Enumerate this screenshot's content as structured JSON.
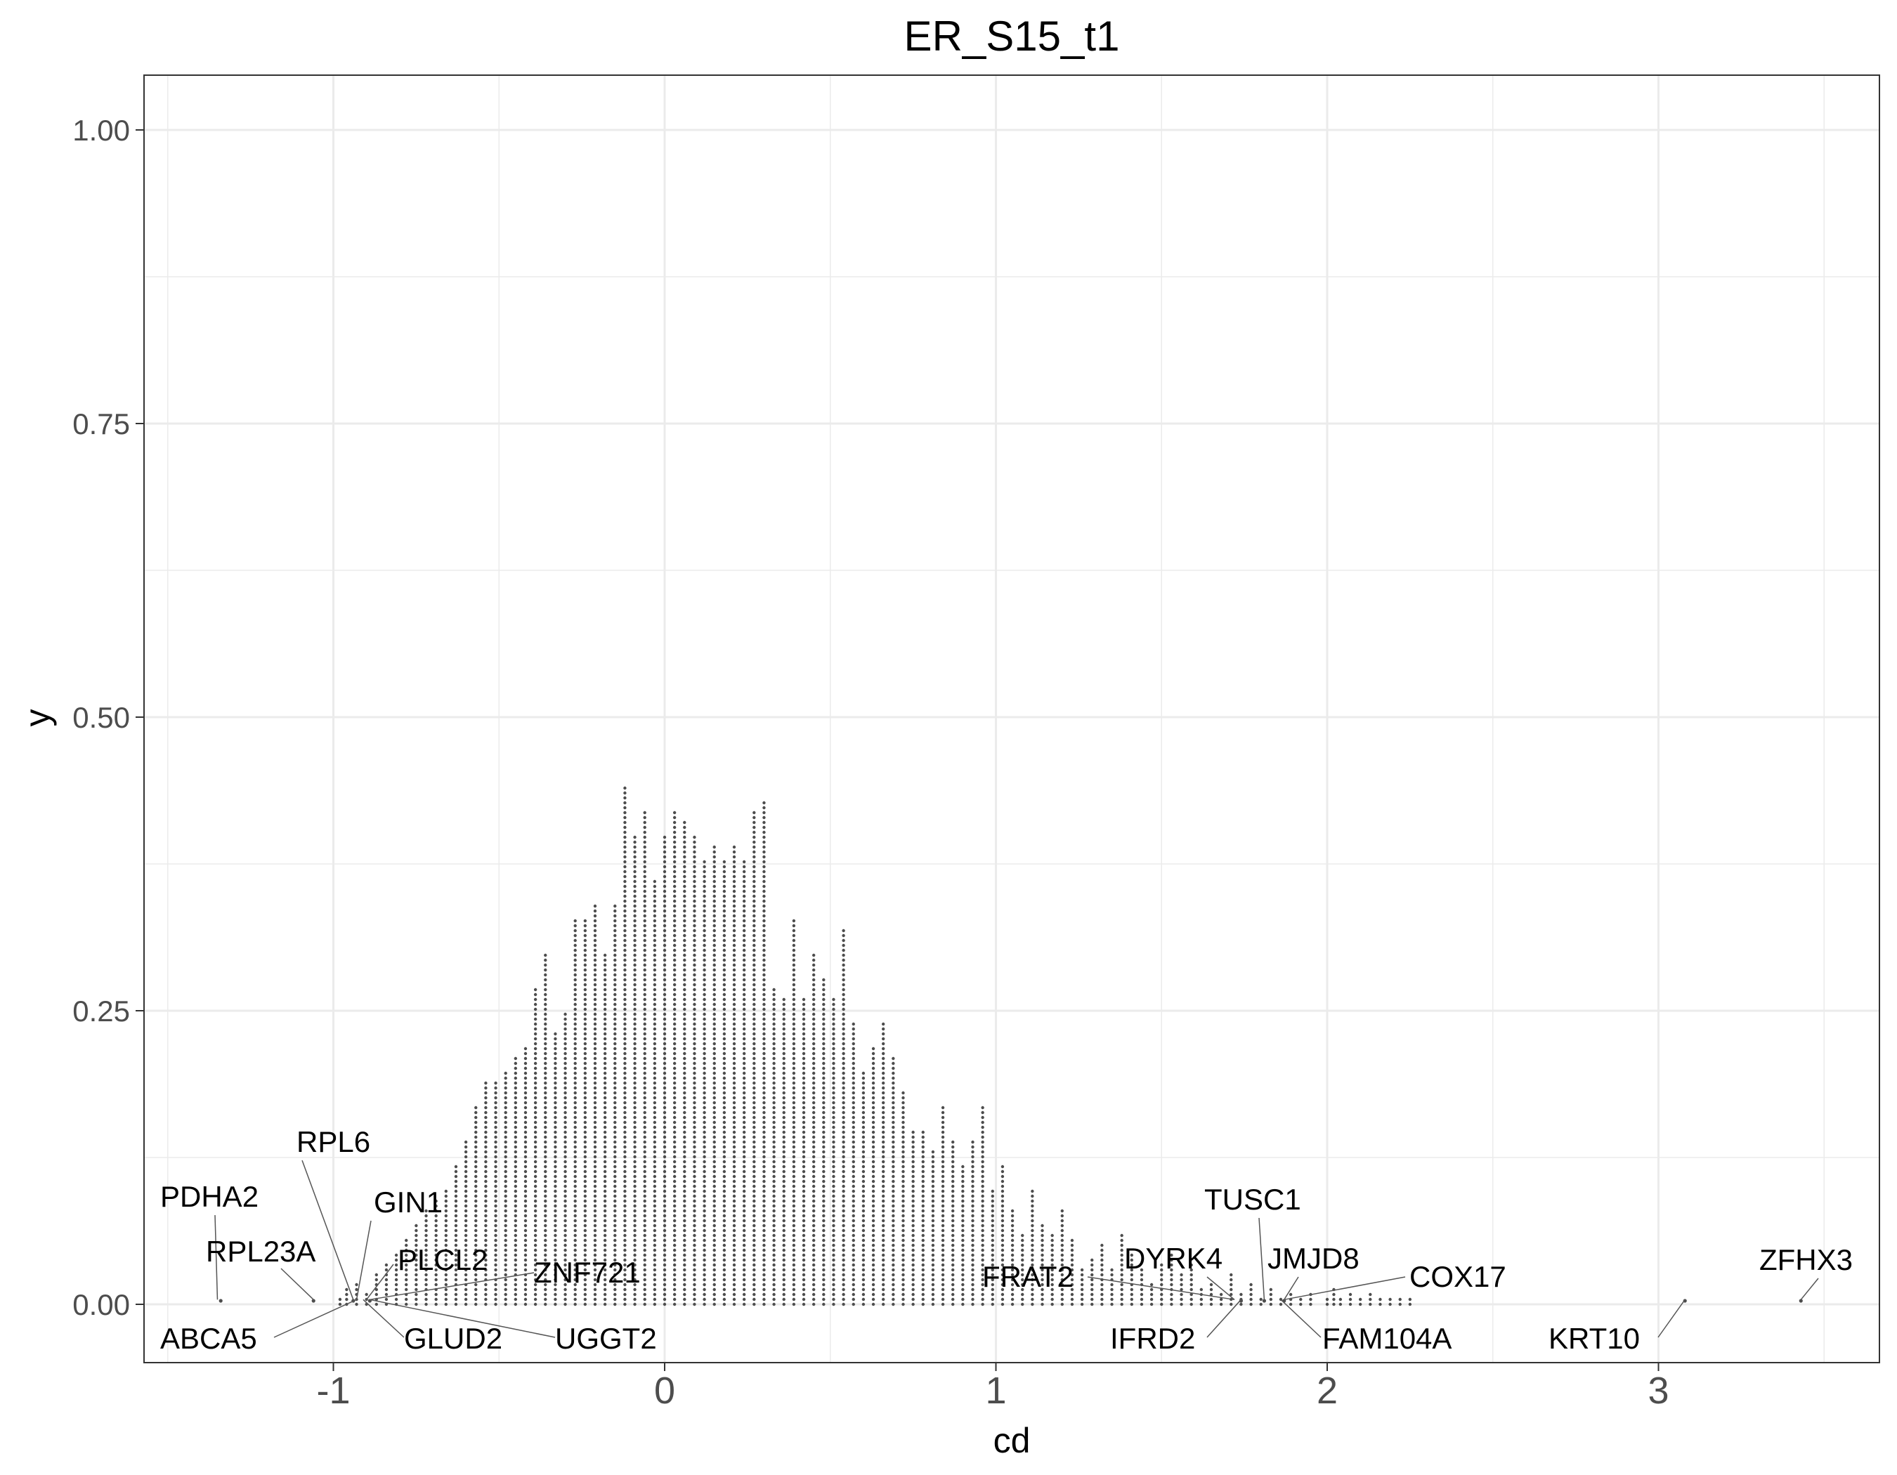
{
  "chart_data": {
    "type": "dotplot",
    "title": "ER_S15_t1",
    "xlabel": "cd",
    "ylabel": "y",
    "xlim": [
      -1.5,
      3.5
    ],
    "ylim": [
      -0.02,
      1.05
    ],
    "x_ticks": [
      -1,
      0,
      1,
      2,
      3
    ],
    "x_tick_labels": [
      "-1",
      "0",
      "1",
      "2",
      "3"
    ],
    "y_ticks": [
      0,
      0.25,
      0.5,
      0.75,
      1
    ],
    "y_tick_labels": [
      "0.00",
      "0.25",
      "0.50",
      "0.75",
      "1.00"
    ],
    "grid": true,
    "legend": "none",
    "dot_color": "#4d4d4d",
    "stacks": [
      {
        "x": -0.98,
        "y": 0.005
      },
      {
        "x": -0.96,
        "y": 0.015
      },
      {
        "x": -0.93,
        "y": 0.02
      },
      {
        "x": -0.9,
        "y": 0.01
      },
      {
        "x": -0.87,
        "y": 0.025
      },
      {
        "x": -0.84,
        "y": 0.035
      },
      {
        "x": -0.81,
        "y": 0.045
      },
      {
        "x": -0.78,
        "y": 0.055
      },
      {
        "x": -0.75,
        "y": 0.07
      },
      {
        "x": -0.72,
        "y": 0.08
      },
      {
        "x": -0.69,
        "y": 0.09
      },
      {
        "x": -0.66,
        "y": 0.1
      },
      {
        "x": -0.63,
        "y": 0.12
      },
      {
        "x": -0.6,
        "y": 0.14
      },
      {
        "x": -0.57,
        "y": 0.17
      },
      {
        "x": -0.54,
        "y": 0.19
      },
      {
        "x": -0.51,
        "y": 0.19
      },
      {
        "x": -0.48,
        "y": 0.2
      },
      {
        "x": -0.45,
        "y": 0.21
      },
      {
        "x": -0.42,
        "y": 0.22
      },
      {
        "x": -0.39,
        "y": 0.27
      },
      {
        "x": -0.36,
        "y": 0.3
      },
      {
        "x": -0.33,
        "y": 0.23
      },
      {
        "x": -0.3,
        "y": 0.25
      },
      {
        "x": -0.27,
        "y": 0.33
      },
      {
        "x": -0.24,
        "y": 0.33
      },
      {
        "x": -0.21,
        "y": 0.34
      },
      {
        "x": -0.18,
        "y": 0.3
      },
      {
        "x": -0.15,
        "y": 0.34
      },
      {
        "x": -0.12,
        "y": 0.44
      },
      {
        "x": -0.09,
        "y": 0.4
      },
      {
        "x": -0.06,
        "y": 0.42
      },
      {
        "x": -0.03,
        "y": 0.36
      },
      {
        "x": 0.0,
        "y": 0.4
      },
      {
        "x": 0.03,
        "y": 0.42
      },
      {
        "x": 0.06,
        "y": 0.41
      },
      {
        "x": 0.09,
        "y": 0.4
      },
      {
        "x": 0.12,
        "y": 0.38
      },
      {
        "x": 0.15,
        "y": 0.39
      },
      {
        "x": 0.18,
        "y": 0.38
      },
      {
        "x": 0.21,
        "y": 0.39
      },
      {
        "x": 0.24,
        "y": 0.38
      },
      {
        "x": 0.27,
        "y": 0.42
      },
      {
        "x": 0.3,
        "y": 0.43
      },
      {
        "x": 0.33,
        "y": 0.27
      },
      {
        "x": 0.36,
        "y": 0.26
      },
      {
        "x": 0.39,
        "y": 0.33
      },
      {
        "x": 0.42,
        "y": 0.26
      },
      {
        "x": 0.45,
        "y": 0.3
      },
      {
        "x": 0.48,
        "y": 0.28
      },
      {
        "x": 0.51,
        "y": 0.26
      },
      {
        "x": 0.54,
        "y": 0.32
      },
      {
        "x": 0.57,
        "y": 0.24
      },
      {
        "x": 0.6,
        "y": 0.2
      },
      {
        "x": 0.63,
        "y": 0.22
      },
      {
        "x": 0.66,
        "y": 0.24
      },
      {
        "x": 0.69,
        "y": 0.21
      },
      {
        "x": 0.72,
        "y": 0.18
      },
      {
        "x": 0.75,
        "y": 0.15
      },
      {
        "x": 0.78,
        "y": 0.15
      },
      {
        "x": 0.81,
        "y": 0.13
      },
      {
        "x": 0.84,
        "y": 0.17
      },
      {
        "x": 0.87,
        "y": 0.14
      },
      {
        "x": 0.9,
        "y": 0.12
      },
      {
        "x": 0.93,
        "y": 0.14
      },
      {
        "x": 0.96,
        "y": 0.17
      },
      {
        "x": 0.99,
        "y": 0.1
      },
      {
        "x": 1.02,
        "y": 0.12
      },
      {
        "x": 1.05,
        "y": 0.08
      },
      {
        "x": 1.08,
        "y": 0.06
      },
      {
        "x": 1.11,
        "y": 0.1
      },
      {
        "x": 1.14,
        "y": 0.07
      },
      {
        "x": 1.17,
        "y": 0.06
      },
      {
        "x": 1.2,
        "y": 0.08
      },
      {
        "x": 1.23,
        "y": 0.055
      },
      {
        "x": 1.26,
        "y": 0.03
      },
      {
        "x": 1.29,
        "y": 0.04
      },
      {
        "x": 1.32,
        "y": 0.05
      },
      {
        "x": 1.35,
        "y": 0.03
      },
      {
        "x": 1.38,
        "y": 0.06
      },
      {
        "x": 1.41,
        "y": 0.045
      },
      {
        "x": 1.44,
        "y": 0.03
      },
      {
        "x": 1.47,
        "y": 0.02
      },
      {
        "x": 1.5,
        "y": 0.035
      },
      {
        "x": 1.53,
        "y": 0.045
      },
      {
        "x": 1.56,
        "y": 0.025
      },
      {
        "x": 1.59,
        "y": 0.035
      },
      {
        "x": 1.62,
        "y": 0.015
      },
      {
        "x": 1.65,
        "y": 0.02
      },
      {
        "x": 1.68,
        "y": 0.01
      },
      {
        "x": 1.71,
        "y": 0.025
      },
      {
        "x": 1.74,
        "y": 0.01
      },
      {
        "x": 1.77,
        "y": 0.02
      },
      {
        "x": 1.8,
        "y": 0.005
      },
      {
        "x": 1.83,
        "y": 0.015
      },
      {
        "x": 1.86,
        "y": 0.005
      },
      {
        "x": 1.89,
        "y": 0.01
      },
      {
        "x": 1.92,
        "y": 0.005
      },
      {
        "x": 1.95,
        "y": 0.01
      },
      {
        "x": 2.0,
        "y": 0.005
      },
      {
        "x": 2.02,
        "y": 0.015
      },
      {
        "x": 2.04,
        "y": 0.005
      },
      {
        "x": 2.07,
        "y": 0.01
      },
      {
        "x": 2.1,
        "y": 0.005
      },
      {
        "x": 2.13,
        "y": 0.01
      },
      {
        "x": 2.16,
        "y": 0.005
      },
      {
        "x": 2.19,
        "y": 0.005
      },
      {
        "x": 2.22,
        "y": 0.005
      },
      {
        "x": 2.25,
        "y": 0.005
      }
    ],
    "outliers": [
      {
        "x": -1.34,
        "y": 0.003
      },
      {
        "x": -1.06,
        "y": 0.003
      },
      {
        "x": -0.94,
        "y": 0.003
      },
      {
        "x": -0.89,
        "y": 0.003
      },
      {
        "x": 1.74,
        "y": 0.003
      },
      {
        "x": 1.81,
        "y": 0.003
      },
      {
        "x": 1.87,
        "y": 0.003
      },
      {
        "x": 3.08,
        "y": 0.003
      },
      {
        "x": 3.43,
        "y": 0.003
      }
    ],
    "annotations": [
      {
        "label": "PDHA2",
        "x": -1.35,
        "y": 0.004
      },
      {
        "label": "RPL23A",
        "x": -1.06,
        "y": 0.004
      },
      {
        "label": "RPL6",
        "x": -0.94,
        "y": 0.004
      },
      {
        "label": "GIN1",
        "x": -0.93,
        "y": 0.004
      },
      {
        "label": "PLCL2",
        "x": -0.9,
        "y": 0.004
      },
      {
        "label": "ZNF721",
        "x": -0.89,
        "y": 0.004
      },
      {
        "label": "ABCA5",
        "x": -0.93,
        "y": 0.004
      },
      {
        "label": "GLUD2",
        "x": -0.91,
        "y": 0.004
      },
      {
        "label": "UGGT2",
        "x": -0.89,
        "y": 0.004
      },
      {
        "label": "FRAT2",
        "x": 1.72,
        "y": 0.004
      },
      {
        "label": "DYRK4",
        "x": 1.72,
        "y": 0.004
      },
      {
        "label": "TUSC1",
        "x": 1.81,
        "y": 0.004
      },
      {
        "label": "JMJD8",
        "x": 1.87,
        "y": 0.004
      },
      {
        "label": "COX17",
        "x": 1.87,
        "y": 0.004
      },
      {
        "label": "IFRD2",
        "x": 1.74,
        "y": 0.004
      },
      {
        "label": "FAM104A",
        "x": 1.86,
        "y": 0.004
      },
      {
        "label": "KRT10",
        "x": 3.08,
        "y": 0.004
      },
      {
        "label": "ZFHX3",
        "x": 3.43,
        "y": 0.004
      }
    ]
  }
}
